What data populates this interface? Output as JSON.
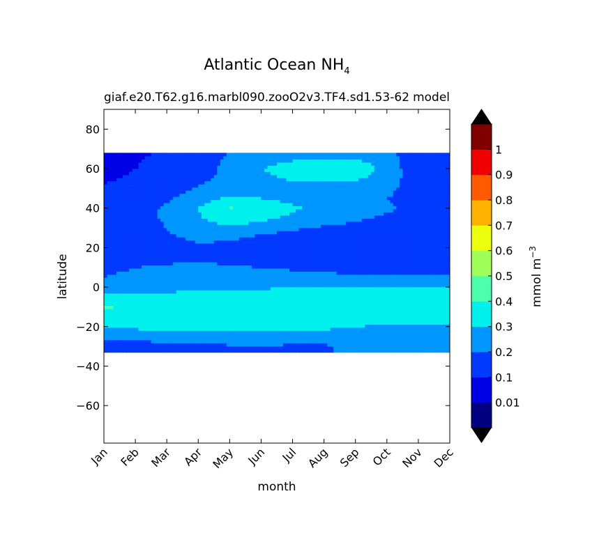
{
  "chart_data": {
    "type": "heatmap",
    "title": "Atlantic Ocean NH",
    "title_subscript": "4",
    "subtitle_left": "giaf.e20.T62.g16.marbl090.zooO2v3.TF4.sd1.53-62",
    "subtitle_right": "model",
    "xlabel": "month",
    "ylabel": "latitude",
    "x_ticks": [
      "Jan",
      "Feb",
      "Mar",
      "Apr",
      "May",
      "Jun",
      "Jul",
      "Aug",
      "Sep",
      "Oct",
      "Nov",
      "Dec"
    ],
    "y_ticks": [
      80,
      60,
      40,
      20,
      0,
      -20,
      -40,
      -60
    ],
    "xlim": [
      0,
      11
    ],
    "ylim": [
      -79,
      90
    ],
    "colorbar": {
      "label": "mmol m",
      "label_superscript": "−3",
      "levels": [
        0.01,
        0.1,
        0.2,
        0.3,
        0.4,
        0.5,
        0.6,
        0.7,
        0.8,
        0.9,
        1
      ],
      "tick_labels": [
        "0.01",
        "0.1",
        "0.2",
        "0.3",
        "0.4",
        "0.5",
        "0.6",
        "0.7",
        "0.8",
        "0.9",
        "1"
      ],
      "colors": [
        "#000080",
        "#0000e6",
        "#0039ff",
        "#0096ff",
        "#00f0ee",
        "#4bffac",
        "#9fff58",
        "#ecff0c",
        "#ffb200",
        "#ff5a00",
        "#f00000",
        "#800000"
      ],
      "extend": "both"
    },
    "latitudes": [
      -33,
      -30,
      -25,
      -20,
      -15,
      -10,
      -5,
      0,
      5,
      10,
      15,
      20,
      25,
      30,
      35,
      40,
      45,
      50,
      55,
      60,
      65,
      68
    ],
    "values": [
      [
        0.14,
        0.15,
        0.16,
        0.17,
        0.18,
        0.18,
        0.18,
        0.19,
        0.22,
        0.24,
        0.26,
        0.28
      ],
      [
        0.15,
        0.16,
        0.17,
        0.18,
        0.19,
        0.19,
        0.19,
        0.19,
        0.22,
        0.23,
        0.22,
        0.22
      ],
      [
        0.22,
        0.23,
        0.24,
        0.24,
        0.25,
        0.25,
        0.24,
        0.23,
        0.21,
        0.21,
        0.21,
        0.21
      ],
      [
        0.31,
        0.32,
        0.33,
        0.33,
        0.34,
        0.34,
        0.34,
        0.33,
        0.3,
        0.28,
        0.28,
        0.28
      ],
      [
        0.36,
        0.38,
        0.36,
        0.35,
        0.36,
        0.36,
        0.37,
        0.37,
        0.36,
        0.35,
        0.34,
        0.33
      ],
      [
        0.41,
        0.38,
        0.35,
        0.36,
        0.37,
        0.37,
        0.38,
        0.38,
        0.37,
        0.36,
        0.35,
        0.34
      ],
      [
        0.34,
        0.33,
        0.33,
        0.34,
        0.34,
        0.35,
        0.34,
        0.34,
        0.33,
        0.33,
        0.32,
        0.32
      ],
      [
        0.25,
        0.26,
        0.27,
        0.28,
        0.29,
        0.29,
        0.3,
        0.3,
        0.3,
        0.3,
        0.31,
        0.3
      ],
      [
        0.2,
        0.21,
        0.22,
        0.23,
        0.24,
        0.24,
        0.23,
        0.22,
        0.21,
        0.21,
        0.21,
        0.21
      ],
      [
        0.19,
        0.2,
        0.21,
        0.22,
        0.21,
        0.2,
        0.19,
        0.18,
        0.18,
        0.17,
        0.17,
        0.17
      ],
      [
        0.15,
        0.17,
        0.18,
        0.19,
        0.17,
        0.16,
        0.15,
        0.15,
        0.15,
        0.15,
        0.14,
        0.14
      ],
      [
        0.13,
        0.15,
        0.17,
        0.19,
        0.18,
        0.16,
        0.15,
        0.14,
        0.14,
        0.14,
        0.13,
        0.13
      ],
      [
        0.13,
        0.16,
        0.19,
        0.21,
        0.21,
        0.18,
        0.16,
        0.15,
        0.14,
        0.14,
        0.13,
        0.13
      ],
      [
        0.14,
        0.17,
        0.2,
        0.26,
        0.28,
        0.24,
        0.21,
        0.19,
        0.18,
        0.16,
        0.14,
        0.14
      ],
      [
        0.14,
        0.17,
        0.21,
        0.29,
        0.36,
        0.33,
        0.27,
        0.23,
        0.21,
        0.19,
        0.17,
        0.15
      ],
      [
        0.14,
        0.17,
        0.21,
        0.3,
        0.41,
        0.38,
        0.32,
        0.26,
        0.23,
        0.21,
        0.18,
        0.16
      ],
      [
        0.13,
        0.16,
        0.19,
        0.25,
        0.32,
        0.3,
        0.27,
        0.24,
        0.22,
        0.2,
        0.17,
        0.15
      ],
      [
        0.11,
        0.13,
        0.16,
        0.21,
        0.24,
        0.26,
        0.27,
        0.26,
        0.24,
        0.22,
        0.15,
        0.12
      ],
      [
        0.09,
        0.11,
        0.14,
        0.18,
        0.22,
        0.27,
        0.31,
        0.32,
        0.31,
        0.25,
        0.14,
        0.11
      ],
      [
        0.08,
        0.1,
        0.13,
        0.17,
        0.22,
        0.3,
        0.35,
        0.39,
        0.38,
        0.26,
        0.13,
        0.11
      ],
      [
        0.07,
        0.09,
        0.13,
        0.17,
        0.21,
        0.25,
        0.29,
        0.31,
        0.3,
        0.25,
        0.12,
        0.11
      ],
      [
        0.05,
        0.07,
        0.12,
        0.16,
        0.2,
        0.22,
        0.24,
        0.25,
        0.26,
        0.22,
        0.12,
        0.1
      ]
    ]
  }
}
